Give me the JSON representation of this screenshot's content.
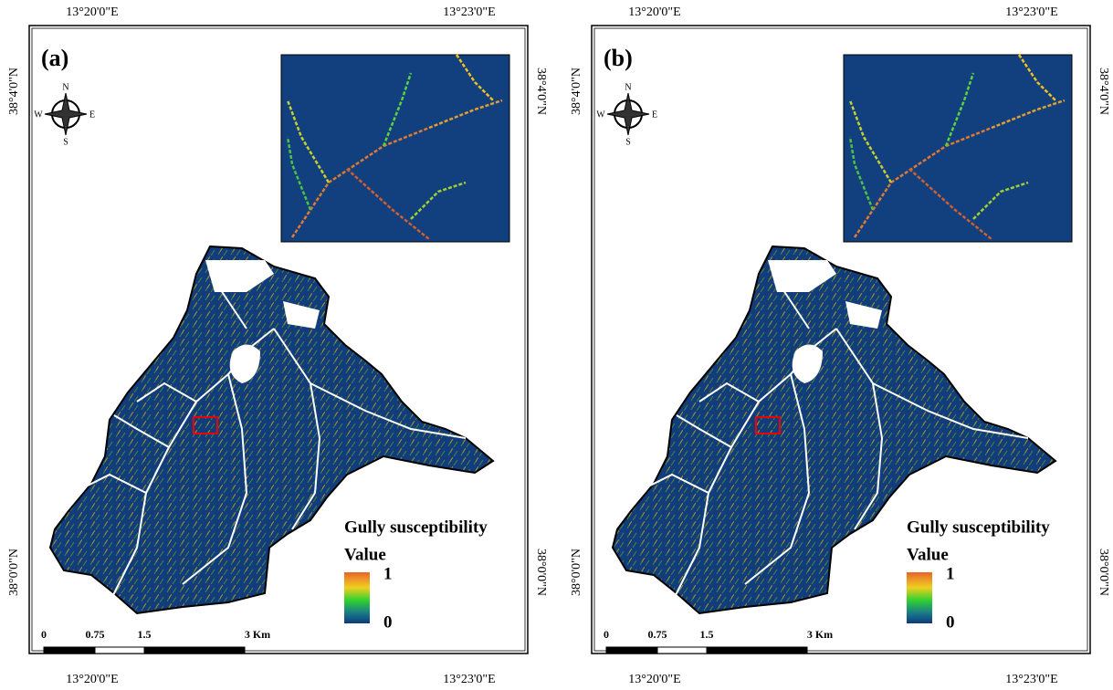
{
  "panels": [
    {
      "label": "(a)",
      "top_labels": [
        "13°20'0\"E",
        "13°23'0\"E"
      ],
      "bottom_labels": [
        "13°20'0\"E",
        "13°23'0\"E"
      ],
      "left_labels": [
        "38°4'0\"N",
        "38°0'0\"N"
      ],
      "right_labels": [
        "38°4'0\"N",
        "38°0'0\"N"
      ],
      "compass": {
        "n": "N",
        "e": "E",
        "s": "S",
        "w": "W"
      },
      "legend": {
        "title": "Gully susceptibility",
        "subtitle": "Value",
        "max": "1",
        "min": "0"
      },
      "scale_bar": [
        "0",
        "0.75",
        "1.5",
        "3 Km"
      ]
    },
    {
      "label": "(b)",
      "top_labels": [
        "13°20'0\"E",
        "13°23'0\"E"
      ],
      "bottom_labels": [
        "13°20'0\"E",
        "13°23'0\"E"
      ],
      "left_labels": [
        "38°4'0\"N",
        "38°0'0\"N"
      ],
      "right_labels": [
        "38°4'0\"N",
        "38°0'0\"N"
      ],
      "compass": {
        "n": "N",
        "e": "E",
        "s": "S",
        "w": "W"
      },
      "legend": {
        "title": "Gully susceptibility",
        "subtitle": "Value",
        "max": "1",
        "min": "0"
      },
      "scale_bar": [
        "0",
        "0.75",
        "1.5",
        "3 Km"
      ]
    }
  ]
}
